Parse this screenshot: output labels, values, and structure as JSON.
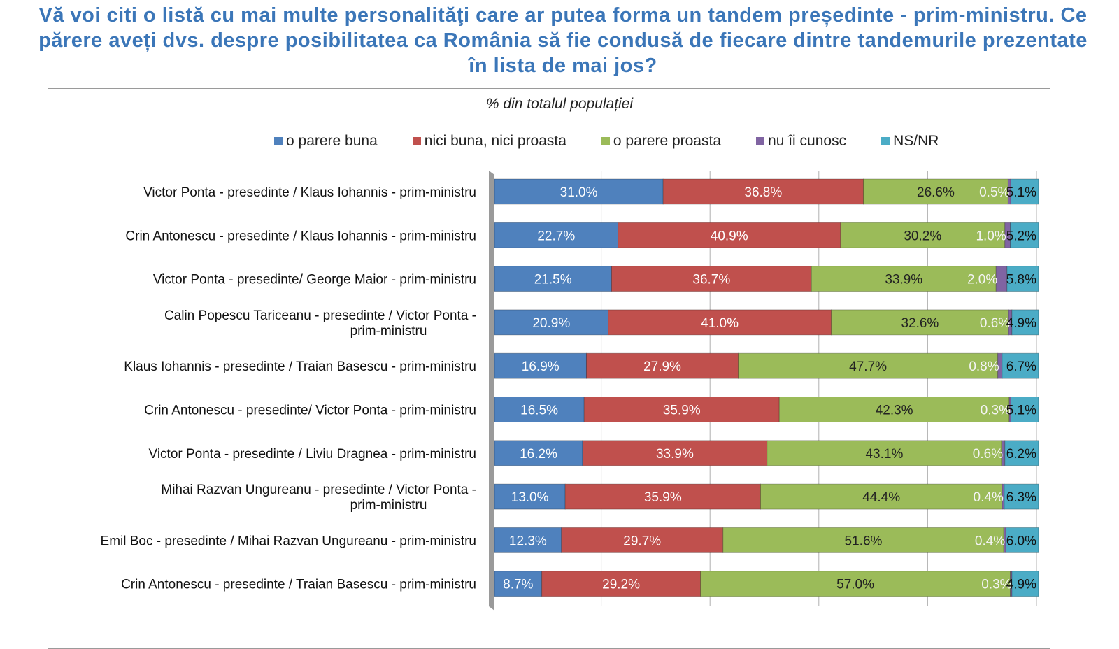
{
  "title": "Vă voi citi o listă cu mai multe personalităţi care ar putea forma un tandem președinte - prim-ministru. Ce părere aveți dvs. despre posibilitatea ca România să fie condusă de fiecare dintre tandemurile prezentate în lista de mai jos?",
  "chart_data": {
    "type": "bar",
    "orientation": "horizontal",
    "stacked": true,
    "subtitle": "% din totalul populației",
    "xlim": [
      0,
      100
    ],
    "grid": true,
    "legend_position": "top",
    "categories": [
      "Victor Ponta - presedinte / Klaus Iohannis - prim-ministru",
      "Crin Antonescu - presedinte / Klaus Iohannis - prim-ministru",
      "Victor Ponta - presedinte/ George Maior - prim-ministru",
      "Calin Popescu Tariceanu - presedinte / Victor Ponta - prim-ministru",
      "Klaus Iohannis - presedinte / Traian Basescu - prim-ministru",
      "Crin Antonescu - presedinte/ Victor Ponta - prim-ministru",
      "Victor Ponta - presedinte / Liviu Dragnea - prim-ministru",
      "Mihai Razvan Ungureanu - presedinte / Victor Ponta - prim-ministru",
      "Emil Boc - presedinte / Mihai Razvan Ungureanu - prim-ministru",
      "Crin Antonescu - presedinte / Traian Basescu - prim-ministru"
    ],
    "series": [
      {
        "name": "o parere buna",
        "color": "#4f81bd",
        "values": [
          31.0,
          22.7,
          21.5,
          20.9,
          16.9,
          16.5,
          16.2,
          13.0,
          12.3,
          8.7
        ]
      },
      {
        "name": "nici buna, nici proasta",
        "color": "#c0504d",
        "values": [
          36.8,
          40.9,
          36.7,
          41.0,
          27.9,
          35.9,
          33.9,
          35.9,
          29.7,
          29.2
        ]
      },
      {
        "name": "o parere proasta",
        "color": "#9bbb59",
        "values": [
          26.6,
          30.2,
          33.9,
          32.6,
          47.7,
          42.3,
          43.1,
          44.4,
          51.6,
          57.0
        ]
      },
      {
        "name": "nu îi cunosc",
        "color": "#8064a2",
        "values": [
          0.5,
          1.0,
          2.0,
          0.6,
          0.8,
          0.3,
          0.6,
          0.4,
          0.4,
          0.3
        ]
      },
      {
        "name": "NS/NR",
        "color": "#4bacc6",
        "values": [
          5.1,
          5.2,
          5.8,
          4.9,
          6.7,
          5.1,
          6.2,
          6.3,
          6.0,
          4.9
        ]
      }
    ]
  }
}
